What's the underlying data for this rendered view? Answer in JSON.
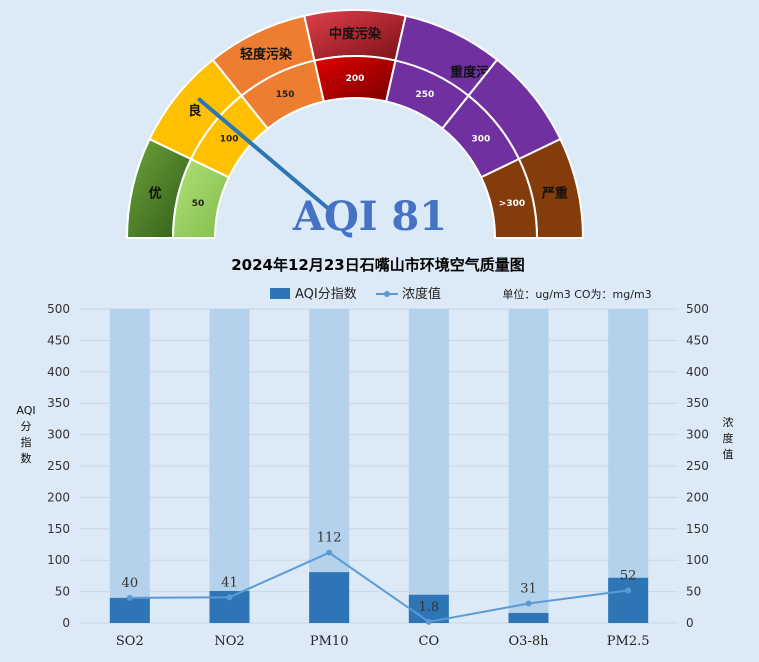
{
  "gauge": {
    "aqi_label": "AQI 81",
    "aqi_value": 81,
    "max_value": 350,
    "segments": [
      {
        "level": "优",
        "tick": "50",
        "from": 0,
        "to": 50,
        "outer": [
          "#6fa43a",
          "#2f5c18"
        ],
        "inner": [
          "#b3e07b",
          "#7fbd4a"
        ]
      },
      {
        "level": "良",
        "tick": "100",
        "from": 50,
        "to": 100,
        "outer": [
          "#ffc000",
          "#ffc000"
        ],
        "inner": [
          "#ffc000",
          "#ffc000"
        ]
      },
      {
        "level": "轻度污染",
        "tick": "150",
        "from": 100,
        "to": 150,
        "outer": [
          "#ed7d31",
          "#ed7d31"
        ],
        "inner": [
          "#ed7d31",
          "#ed7d31"
        ]
      },
      {
        "level": "中度污染",
        "tick": "200",
        "from": 150,
        "to": 200,
        "outer": [
          "#e0404a",
          "#7a1018"
        ],
        "inner": [
          "#e00000",
          "#7a0000"
        ]
      },
      {
        "level": "重度污染",
        "tick": "250",
        "from": 200,
        "to": 250,
        "outer": [
          "#7030a0",
          "#7030a0"
        ],
        "inner": [
          "#7030a0",
          "#7030a0"
        ]
      },
      {
        "level": "",
        "tick": "300",
        "from": 250,
        "to": 300,
        "outer": [
          "#7030a0",
          "#7030a0"
        ],
        "inner": [
          "#7030a0",
          "#7030a0"
        ]
      },
      {
        "level": "严重",
        "tick": ">300",
        "from": 300,
        "to": 350,
        "outer": [
          "#843c0c",
          "#843c0c"
        ],
        "inner": [
          "#843c0c",
          "#843c0c"
        ]
      }
    ]
  },
  "chart_title": "2024年12月23日石嘴山市环境空气质量图",
  "units_note": "单位：ug/m3  CO为：mg/m3",
  "chart_data": {
    "type": "bar",
    "title": "2024年12月23日石嘴山市环境空气质量图",
    "categories": [
      "SO2",
      "NO2",
      "PM10",
      "CO",
      "O3-8h",
      "PM2.5"
    ],
    "ylim": [
      0,
      500
    ],
    "yticks": [
      0,
      50,
      100,
      150,
      200,
      250,
      300,
      350,
      400,
      450,
      500
    ],
    "ylabel": "AQI分指数",
    "y2label": "浓度值",
    "background_max": 500,
    "grid": true,
    "legend_position": "top",
    "series": [
      {
        "name": "AQI分指数",
        "kind": "bar",
        "color": "#2e75b6",
        "values": [
          40,
          51,
          81,
          45,
          16,
          72
        ]
      },
      {
        "name": "浓度值",
        "kind": "line",
        "color": "#5b9bd5",
        "values": [
          40,
          41,
          112,
          1.8,
          31,
          52
        ],
        "labels": [
          "40",
          "41",
          "112",
          "1.8",
          "31",
          "52"
        ]
      }
    ]
  }
}
